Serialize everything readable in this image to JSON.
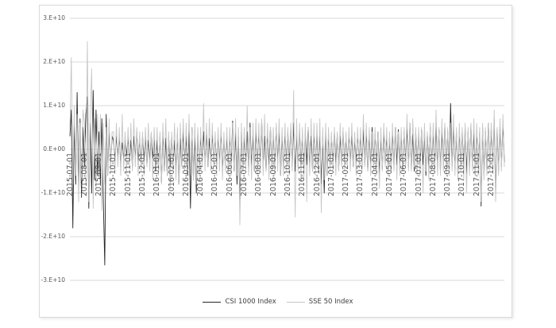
{
  "chart_data": {
    "type": "line",
    "title": "",
    "value_scale": 1000000000,
    "ylim_e9": [
      -30,
      30
    ],
    "y_tick_labels": [
      "3.E+10",
      "2.E+10",
      "1.E+10",
      "0.E+00",
      "-1.E+10",
      "-2.E+10",
      "-3.E+10"
    ],
    "y_tick_values_e9": [
      30,
      20,
      10,
      0,
      -10,
      -20,
      -30
    ],
    "x_tick_labels": [
      "2015-07-01",
      "2015-08-01",
      "2015-09-01",
      "2015-10-01",
      "2015-11-01",
      "2015-12-01",
      "2016-01-01",
      "2016-02-01",
      "2016-03-01",
      "2016-04-01",
      "2016-05-01",
      "2016-06-01",
      "2016-07-01",
      "2016-08-01",
      "2016-09-01",
      "2016-10-01",
      "2016-11-01",
      "2016-12-01",
      "2017-01-01",
      "2017-02-01",
      "2017-03-01",
      "2017-04-01",
      "2017-05-01",
      "2017-06-01",
      "2017-07-01",
      "2017-08-01",
      "2017-09-01",
      "2017-10-01",
      "2017-11-01",
      "2017-12-01"
    ],
    "points_per_x_label": 10,
    "grid": "horizontal",
    "legend_position": "bottom-center",
    "colors": {
      "grid": "#d9d9d9",
      "frame": "#d9d9d9",
      "tick_text": "#595959",
      "legend_text": "#404040"
    },
    "series": [
      {
        "name": "CSI 1000 Index",
        "color": "#262626",
        "values_e9": [
          3,
          9,
          -18,
          6,
          -8,
          13,
          -9,
          7,
          -11,
          5,
          -4,
          8,
          12,
          -13.5,
          6,
          -10,
          13.5,
          -7,
          9,
          -6,
          4,
          -8,
          7,
          -12,
          -26.5,
          8,
          -6,
          5,
          -4,
          3,
          2,
          -2.5,
          3,
          -1.5,
          2.5,
          -3,
          1.5,
          -2,
          2.5,
          -1.5,
          2.5,
          -3,
          2,
          -4,
          3,
          -2,
          4,
          -2.5,
          2,
          -3,
          3,
          -2,
          2.5,
          -3.5,
          2,
          -2.5,
          3.5,
          -2,
          2.5,
          -5,
          2,
          -5,
          3,
          -7.5,
          4,
          -5,
          2.5,
          -6,
          3,
          -4,
          3,
          -4,
          2,
          -5,
          3.5,
          -8,
          2.5,
          -4,
          4,
          -3,
          3,
          -6,
          4,
          -13.5,
          5,
          -7,
          3,
          -10,
          4,
          -5,
          3,
          -3,
          4,
          -2.5,
          3.5,
          -4,
          2.5,
          -3,
          3.5,
          -2.5,
          2.5,
          -4,
          3,
          -3,
          4,
          -5,
          2.5,
          -3.5,
          3,
          -4,
          3,
          -4,
          6.5,
          -5,
          4,
          -8,
          3,
          -12,
          4,
          -5,
          3,
          -3.5,
          4,
          -4.5,
          6,
          -4,
          3.5,
          -5,
          4,
          -3,
          3.5,
          -3,
          6.5,
          -4,
          3,
          -5,
          4,
          -3.5,
          5,
          -4,
          3,
          -4,
          5,
          -3,
          4,
          -6,
          3,
          -4.5,
          3.5,
          -3,
          4,
          -3,
          5,
          -4,
          6,
          -5,
          3.5,
          -4,
          4.5,
          -3.5,
          3,
          -4.5,
          4,
          -3.5,
          5,
          -4,
          3,
          -5,
          4,
          -4,
          3.5,
          -5,
          4,
          -8,
          3,
          -10,
          4,
          -6,
          3.5,
          -4,
          3,
          -3.5,
          4,
          -3,
          3.5,
          -4.5,
          3,
          -3.5,
          4,
          -3,
          2.5,
          -3,
          3.5,
          -2.5,
          3,
          -4,
          2.5,
          -3,
          3.5,
          -2.5,
          3,
          -4,
          4.5,
          -3.5,
          4,
          -5,
          3,
          -4,
          5,
          -3.5,
          3.5,
          -4,
          4,
          -5.5,
          3,
          -4.5,
          4,
          -3.5,
          3,
          -4,
          3,
          -5,
          4,
          -4,
          5,
          -3.5,
          4.5,
          -4,
          3.5,
          -5,
          4,
          -3.5,
          5,
          -4,
          6,
          -4.5,
          3.5,
          -5,
          4,
          -3.5,
          3.5,
          -4,
          4.5,
          -3.5,
          4,
          -6,
          3.5,
          -4,
          5,
          -4,
          4,
          -4.5,
          5,
          -4,
          4.5,
          -5,
          4,
          -3.5,
          5.5,
          -4,
          4,
          -5,
          10.5,
          -4,
          5,
          -4.5,
          4,
          -6,
          4.5,
          -4,
          4,
          -4,
          5,
          -5.5,
          4,
          -4.5,
          5.5,
          -4,
          4,
          -6,
          4.5,
          -5,
          4,
          -13,
          5,
          -6,
          4,
          -5,
          6,
          -4.5,
          5,
          -4,
          7,
          -10,
          4.5,
          -5,
          5.5,
          -4,
          6,
          -3
        ]
      },
      {
        "name": "SSE 50 Index",
        "color": "#c6c6c6",
        "values_e9": [
          5,
          21,
          -8,
          10,
          -6,
          8,
          -12,
          6,
          -7,
          9,
          6,
          -8,
          24.7,
          -12,
          8,
          18.4,
          -13.5,
          7,
          -9,
          8,
          -6,
          8,
          -14,
          6,
          -8,
          5,
          -6,
          7,
          -5,
          4,
          4,
          -5,
          6,
          -4,
          5,
          -6,
          8,
          -5,
          4,
          -6,
          5,
          -4,
          6,
          -5,
          7,
          -4,
          5,
          -6,
          4,
          -5,
          4,
          -6,
          5,
          -4,
          6,
          -5,
          4,
          -7,
          5,
          -4,
          5,
          -6,
          4,
          -8,
          6,
          -5,
          7,
          -6,
          4,
          -9,
          4,
          -5,
          6,
          -7,
          5,
          -8,
          6,
          -4,
          7,
          -5,
          6,
          -5,
          8,
          -6,
          5,
          -7,
          6,
          -8,
          5,
          -6,
          5,
          -4,
          10.5,
          -5,
          6,
          -4,
          7,
          -5,
          6,
          -4,
          4,
          -6,
          5,
          -5,
          6,
          -7,
          4,
          -5,
          5,
          -6,
          5,
          -6,
          6,
          -5,
          7,
          -6,
          5,
          -17.3,
          6,
          -5,
          5,
          -5,
          10,
          -6,
          5,
          -7,
          6,
          -5,
          7,
          -6,
          6,
          -5,
          7,
          -6,
          8,
          -5,
          6,
          -7,
          5,
          -5,
          5,
          -6,
          6,
          -5,
          7,
          -6,
          5,
          -6,
          6,
          -5,
          5,
          -6,
          6,
          -5,
          13.5,
          -15.5,
          7,
          -5,
          6,
          -7,
          5,
          -7,
          6,
          -12,
          5,
          -6,
          7,
          -5,
          6,
          -6,
          6,
          -5,
          7,
          -14.5,
          5,
          -7,
          6,
          -6,
          5,
          -5,
          4,
          -5,
          5,
          -6,
          4,
          -5,
          6,
          -4,
          5,
          -5,
          4,
          -4,
          5,
          -5,
          6,
          -4,
          4,
          -6,
          5,
          -4,
          5,
          -5,
          8,
          -4,
          6,
          -5,
          5,
          -6,
          4,
          -5,
          5,
          -6,
          4,
          -9,
          5,
          -5,
          6,
          -4,
          5,
          -6,
          4,
          -5,
          6,
          -5,
          5,
          -7,
          4,
          -6,
          5,
          -5,
          5,
          -4,
          8,
          -5,
          6,
          -5,
          7,
          -4,
          5,
          -6,
          5,
          -6,
          5,
          -10,
          6,
          -5,
          4,
          -7,
          6,
          -5,
          6,
          -5,
          9,
          -6,
          5,
          -6,
          7,
          -5,
          6,
          -6,
          5,
          -6,
          6,
          -5,
          8,
          -6,
          5,
          -7,
          6,
          -5,
          5,
          -7,
          6,
          -10,
          5,
          -6,
          6,
          -5,
          7,
          -6,
          6,
          -6,
          5,
          -12,
          6,
          -7,
          5,
          -6,
          6,
          -5,
          6,
          -5,
          9,
          -12,
          5,
          -6,
          7,
          -5,
          8,
          -4
        ]
      }
    ]
  }
}
